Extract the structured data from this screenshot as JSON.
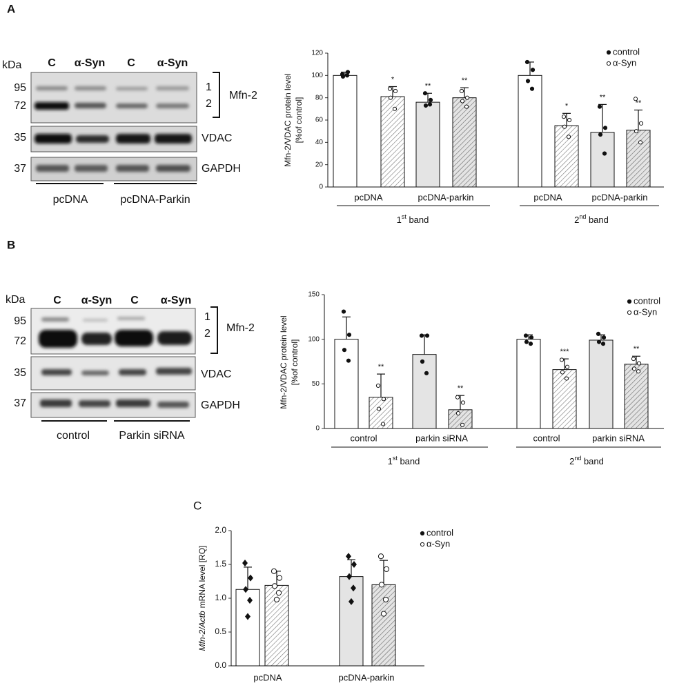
{
  "panel_labels": [
    "A",
    "B",
    "C"
  ],
  "blots": [
    {
      "kda": "kDa",
      "lanes": [
        "C",
        "α-Syn",
        "C",
        "α-Syn"
      ],
      "markers": [
        "95",
        "72",
        "35",
        "37"
      ],
      "band_labels": [
        "1",
        "2"
      ],
      "protein": "Mfn-2",
      "rows": [
        "VDAC",
        "GAPDH"
      ],
      "groups": [
        "pcDNA",
        "pcDNA-Parkin"
      ]
    },
    {
      "kda": "kDa",
      "lanes": [
        "C",
        "α-Syn",
        "C",
        "α-Syn"
      ],
      "markers": [
        "95",
        "72",
        "35",
        "37"
      ],
      "band_labels": [
        "1",
        "2"
      ],
      "protein": "Mfn-2",
      "rows": [
        "VDAC",
        "GAPDH"
      ],
      "groups": [
        "control",
        "Parkin siRNA"
      ]
    }
  ],
  "chart_data": [
    {
      "type": "bar",
      "ylabel": [
        [
          "Mfn-2/VDAC protein level"
        ],
        [
          "[%of control]"
        ]
      ],
      "ylabel_italic": false,
      "categories": [
        "pcDNA",
        "pcDNA-parkin",
        "pcDNA",
        "pcDNA-parkin"
      ],
      "groups": [
        [
          "1",
          "st",
          " band"
        ],
        [
          "2",
          "nd",
          " band"
        ]
      ],
      "ylim": [
        0,
        120
      ],
      "yticks": [
        0,
        20,
        40,
        60,
        80,
        100,
        120
      ],
      "legend": "top-right",
      "series": [
        {
          "name": "control",
          "marker": "dot",
          "hatch": false,
          "colors": [
            "#ffffff",
            "#e4e4e4",
            "#ffffff",
            "#e4e4e4"
          ],
          "values": [
            100,
            76,
            100,
            49
          ],
          "errors": [
            3,
            8,
            12,
            25
          ],
          "points": [
            [
              101,
              103,
              99,
              100
            ],
            [
              84,
              78,
              73,
              74
            ],
            [
              112,
              105,
              95,
              88
            ],
            [
              72,
              53,
              47,
              30
            ]
          ],
          "significance": [
            null,
            "**",
            null,
            "**"
          ]
        },
        {
          "name": "α-Syn",
          "marker": "ring",
          "hatch": true,
          "colors": [
            "#ffffff",
            "#e4e4e4",
            "#ffffff",
            "#e4e4e4"
          ],
          "values": [
            81,
            80,
            55,
            51
          ],
          "errors": [
            9,
            9,
            11,
            18
          ],
          "points": [
            [
              88,
              86,
              80,
              70
            ],
            [
              86,
              80,
              77,
              72
            ],
            [
              63,
              60,
              54,
              45
            ],
            [
              79,
              57,
              50,
              40
            ]
          ],
          "significance": [
            "*",
            "**",
            "*",
            "**"
          ]
        }
      ]
    },
    {
      "type": "bar",
      "ylabel": [
        [
          "Mfn-2/VDAC protein level"
        ],
        [
          "[%of control]"
        ]
      ],
      "ylabel_italic": false,
      "categories": [
        "control",
        "parkin siRNA",
        "control",
        "parkin siRNA"
      ],
      "groups": [
        [
          "1",
          "st",
          " band"
        ],
        [
          "2",
          "nd",
          " band"
        ]
      ],
      "ylim": [
        0,
        150
      ],
      "yticks": [
        0,
        50,
        100,
        150
      ],
      "legend": "top-right",
      "series": [
        {
          "name": "control",
          "marker": "dot",
          "hatch": false,
          "colors": [
            "#ffffff",
            "#e4e4e4",
            "#ffffff",
            "#e4e4e4"
          ],
          "values": [
            100,
            83,
            100,
            99
          ],
          "errors": [
            25,
            22,
            5,
            6
          ],
          "points": [
            [
              131,
              105,
              88,
              76
            ],
            [
              104,
              104,
              75,
              62
            ],
            [
              104,
              102,
              97,
              95
            ],
            [
              106,
              102,
              97,
              95
            ]
          ],
          "significance": [
            null,
            null,
            null,
            null
          ]
        },
        {
          "name": "α-Syn",
          "marker": "ring",
          "hatch": true,
          "colors": [
            "#ffffff",
            "#e4e4e4",
            "#ffffff",
            "#e4e4e4"
          ],
          "values": [
            35,
            21,
            66,
            72
          ],
          "errors": [
            26,
            16,
            12,
            9
          ],
          "points": [
            [
              48,
              33,
              22,
              5
            ],
            [
              35,
              29,
              17,
              4
            ],
            [
              77,
              69,
              63,
              56
            ],
            [
              78,
              73,
              67,
              64
            ]
          ],
          "significance": [
            "**",
            "**",
            "***",
            "**"
          ]
        }
      ]
    },
    {
      "type": "bar",
      "ylabel": [
        [
          "Mfn-2/Actb",
          "mRNA level [RQ]"
        ]
      ],
      "ylabel_italic": true,
      "categories": [
        "pcDNA",
        "pcDNA-parkin"
      ],
      "ylim": [
        0,
        2.0
      ],
      "yticks": [
        {
          "value": 0,
          "label": "0.0"
        },
        {
          "value": 0.5,
          "label": "0.5"
        },
        {
          "value": 1,
          "label": "1.0"
        },
        {
          "value": 1.5,
          "label": "1.5"
        },
        {
          "value": 2,
          "label": "2.0"
        }
      ],
      "legend": "top-right",
      "series": [
        {
          "name": "control",
          "marker": "diamond",
          "hatch": false,
          "colors": [
            "#ffffff",
            "#e4e4e4"
          ],
          "values": [
            1.13,
            1.32
          ],
          "errors": [
            0.33,
            0.25
          ],
          "points": [
            [
              1.52,
              1.3,
              1.13,
              0.97,
              0.73
            ],
            [
              1.62,
              1.5,
              1.32,
              1.15,
              0.95
            ]
          ]
        },
        {
          "name": "α-Syn",
          "marker": "ring",
          "hatch": true,
          "colors": [
            "#ffffff",
            "#e4e4e4"
          ],
          "values": [
            1.19,
            1.2
          ],
          "errors": [
            0.21,
            0.36
          ],
          "points": [
            [
              1.4,
              1.3,
              1.18,
              1.08,
              0.98
            ],
            [
              1.62,
              1.43,
              1.2,
              0.98,
              0.77
            ]
          ]
        }
      ]
    }
  ]
}
